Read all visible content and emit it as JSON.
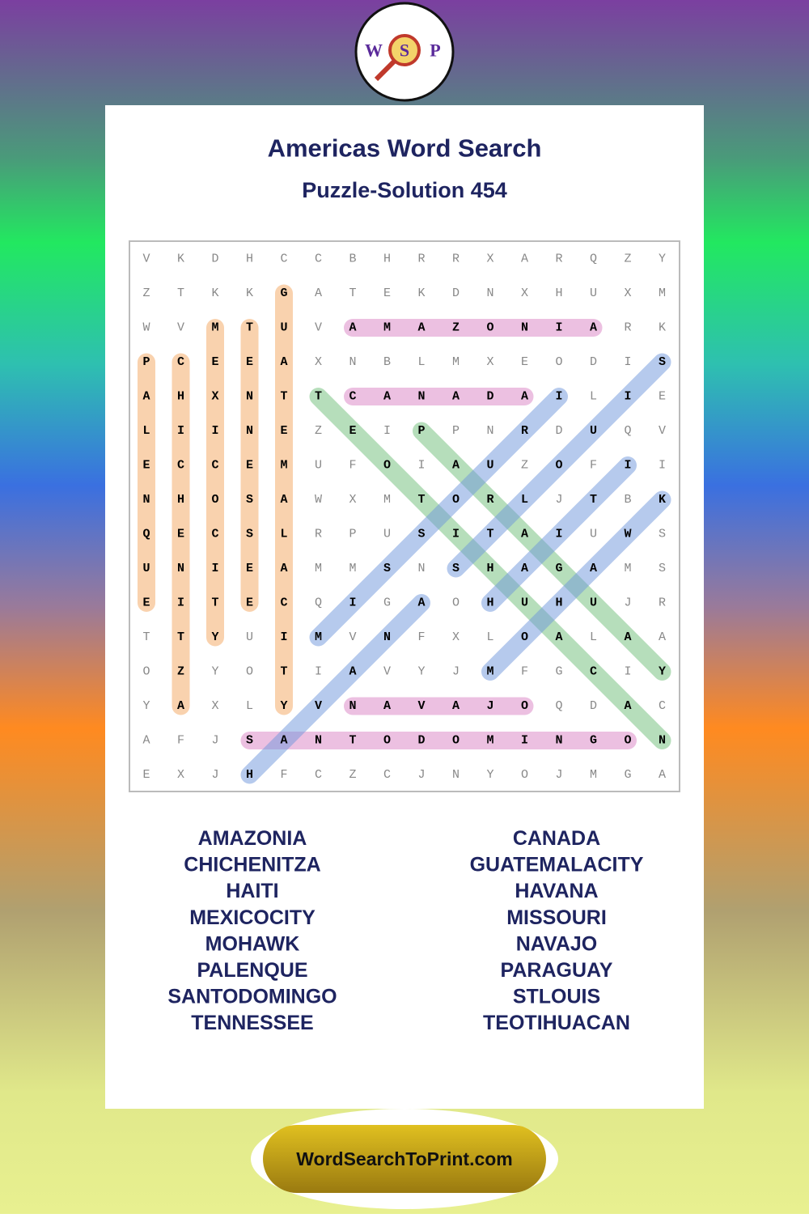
{
  "logo": {
    "letters": [
      "W",
      "S",
      "P"
    ]
  },
  "header": {
    "title": "Americas Word Search",
    "subtitle": "Puzzle-Solution 454"
  },
  "grid": {
    "rows": [
      [
        "V",
        "K",
        "D",
        "H",
        "C",
        "C",
        "B",
        "H",
        "R",
        "R",
        "X",
        "A",
        "R",
        "Q",
        "Z",
        "Y"
      ],
      [
        "Z",
        "T",
        "K",
        "K",
        "G",
        "A",
        "T",
        "E",
        "K",
        "D",
        "N",
        "X",
        "H",
        "U",
        "X",
        "M"
      ],
      [
        "W",
        "V",
        "M",
        "T",
        "U",
        "V",
        "A",
        "M",
        "A",
        "Z",
        "O",
        "N",
        "I",
        "A",
        "R",
        "K"
      ],
      [
        "P",
        "C",
        "E",
        "E",
        "A",
        "X",
        "N",
        "B",
        "L",
        "M",
        "X",
        "E",
        "O",
        "D",
        "I",
        "S"
      ],
      [
        "A",
        "H",
        "X",
        "N",
        "T",
        "T",
        "C",
        "A",
        "N",
        "A",
        "D",
        "A",
        "I",
        "L",
        "I",
        "E"
      ],
      [
        "L",
        "I",
        "I",
        "N",
        "E",
        "Z",
        "E",
        "I",
        "P",
        "P",
        "N",
        "R",
        "D",
        "U",
        "Q",
        "V"
      ],
      [
        "E",
        "C",
        "C",
        "E",
        "M",
        "U",
        "F",
        "O",
        "I",
        "A",
        "U",
        "Z",
        "O",
        "F",
        "I",
        "I"
      ],
      [
        "N",
        "H",
        "O",
        "S",
        "A",
        "W",
        "X",
        "M",
        "T",
        "O",
        "R",
        "L",
        "J",
        "T",
        "B",
        "K"
      ],
      [
        "Q",
        "E",
        "C",
        "S",
        "L",
        "R",
        "P",
        "U",
        "S",
        "I",
        "T",
        "A",
        "I",
        "U",
        "W",
        "S"
      ],
      [
        "U",
        "N",
        "I",
        "E",
        "A",
        "M",
        "M",
        "S",
        "N",
        "S",
        "H",
        "A",
        "G",
        "A",
        "M",
        "S"
      ],
      [
        "E",
        "I",
        "T",
        "E",
        "C",
        "Q",
        "I",
        "G",
        "A",
        "O",
        "H",
        "U",
        "H",
        "U",
        "J",
        "R"
      ],
      [
        "T",
        "T",
        "Y",
        "U",
        "I",
        "M",
        "V",
        "N",
        "F",
        "X",
        "L",
        "O",
        "A",
        "L",
        "A",
        "A"
      ],
      [
        "O",
        "Z",
        "Y",
        "O",
        "T",
        "I",
        "A",
        "V",
        "Y",
        "J",
        "M",
        "F",
        "G",
        "C",
        "I",
        "Y"
      ],
      [
        "Y",
        "A",
        "X",
        "L",
        "Y",
        "V",
        "N",
        "A",
        "V",
        "A",
        "J",
        "O",
        "Q",
        "D",
        "A",
        "C"
      ],
      [
        "A",
        "F",
        "J",
        "S",
        "A",
        "N",
        "T",
        "O",
        "D",
        "O",
        "M",
        "I",
        "N",
        "G",
        "O",
        "N"
      ],
      [
        "E",
        "X",
        "J",
        "H",
        "F",
        "C",
        "Z",
        "C",
        "J",
        "N",
        "Y",
        "O",
        "J",
        "M",
        "G",
        "A"
      ]
    ]
  },
  "word_list": {
    "left": [
      "AMAZONIA",
      "CHICHENITZA",
      "HAITI",
      "MEXICOCITY",
      "MOHAWK",
      "PALENQUE",
      "SANTODOMINGO",
      "TENNESSEE"
    ],
    "right": [
      "CANADA",
      "GUATEMALACITY",
      "HAVANA",
      "MISSOURI",
      "NAVAJO",
      "PARAGUAY",
      "STLOUIS",
      "TEOTIHUACAN"
    ]
  },
  "footer": {
    "site": "WordSearchToPrint.com"
  }
}
